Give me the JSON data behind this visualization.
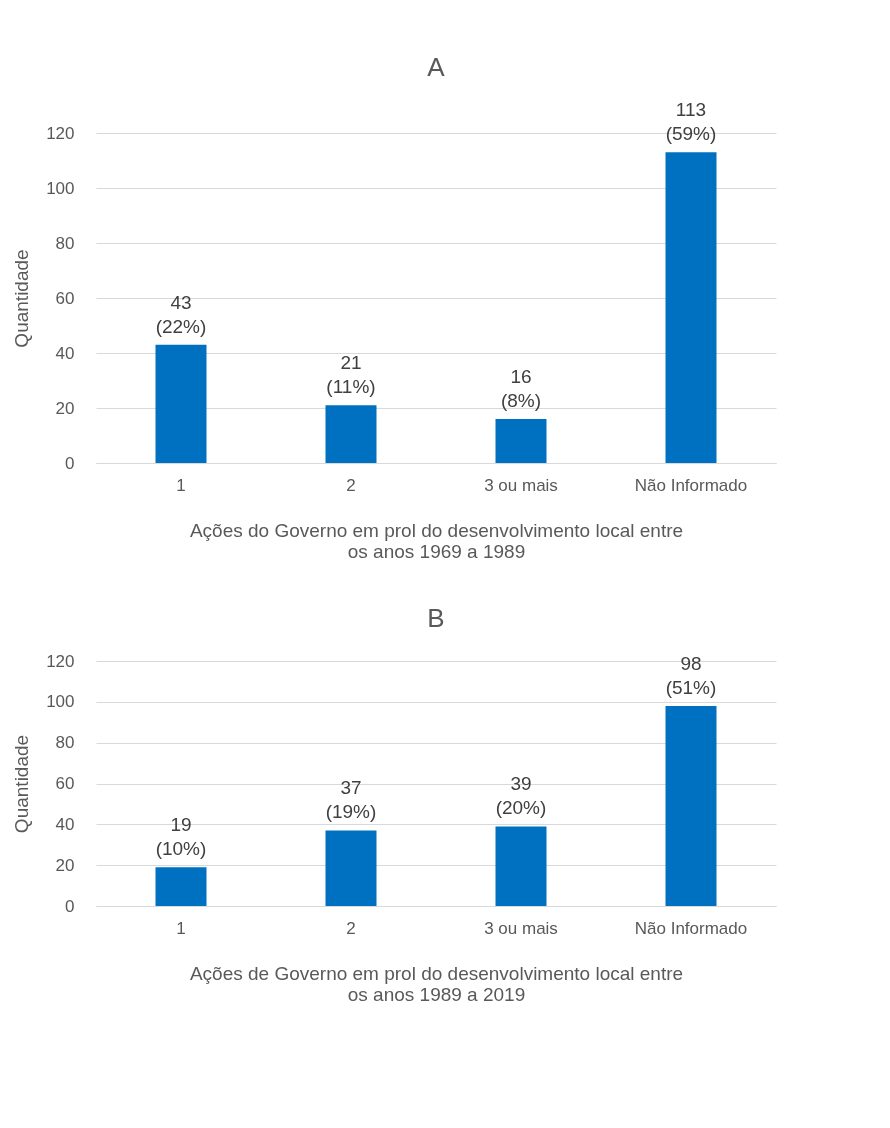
{
  "chart_data": [
    {
      "type": "bar",
      "title": "A",
      "ylabel": "Quantidade",
      "xlabel": "Ações do Governo em prol do desenvolvimento local entre os anos 1969 a 1989",
      "categories": [
        "1",
        "2",
        "3 ou mais",
        "Não Informado"
      ],
      "values": [
        43,
        21,
        16,
        113
      ],
      "value_labels": [
        "43\n(22%)",
        "21\n(11%)",
        "16\n(8%)",
        "113\n(59%)"
      ],
      "color": "#0070c0",
      "ylim": [
        0,
        120
      ],
      "yticks": [
        0,
        20,
        40,
        60,
        80,
        100,
        120
      ],
      "grid": "y"
    },
    {
      "type": "bar",
      "title": "B",
      "ylabel": "Quantidade",
      "xlabel": "Ações de Governo em prol do desenvolvimento local entre os anos 1989 a 2019",
      "categories": [
        "1",
        "2",
        "3 ou mais",
        "Não Informado"
      ],
      "values": [
        19,
        37,
        39,
        98
      ],
      "value_labels": [
        "19\n(10%)",
        "37\n(19%)",
        "39\n(20%)",
        "98\n(51%)"
      ],
      "color": "#0070c0",
      "ylim": [
        0,
        120
      ],
      "yticks": [
        0,
        20,
        40,
        60,
        80,
        100,
        120
      ],
      "grid": "y"
    }
  ]
}
